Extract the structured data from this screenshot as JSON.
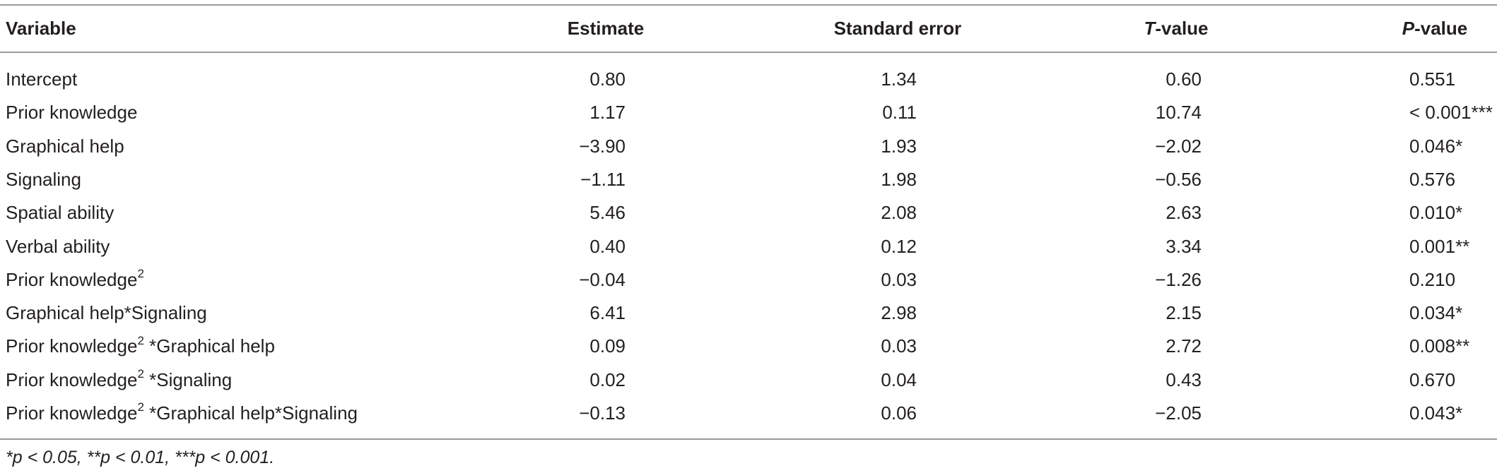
{
  "table": {
    "columns": [
      "Variable",
      "Estimate",
      "Standard error",
      {
        "italic": "T",
        "rest": "-value"
      },
      {
        "italic": "P",
        "rest": "-value"
      }
    ],
    "rows": [
      [
        "Intercept",
        "0.80",
        "1.34",
        "0.60",
        "0.551"
      ],
      [
        "Prior knowledge",
        "1.17",
        "0.11",
        "10.74",
        "< 0.001***"
      ],
      [
        "Graphical help",
        "−3.90",
        "1.93",
        "−2.02",
        "0.046*"
      ],
      [
        "Signaling",
        "−1.11",
        "1.98",
        "−0.56",
        "0.576"
      ],
      [
        "Spatial ability",
        "5.46",
        "2.08",
        "2.63",
        "0.010*"
      ],
      [
        "Verbal ability",
        "0.40",
        "0.12",
        "3.34",
        "0.001**"
      ],
      [
        {
          "main": "Prior knowledge",
          "sup": "2"
        },
        "−0.04",
        "0.03",
        "−1.26",
        "0.210"
      ],
      [
        "Graphical help*Signaling",
        "6.41",
        "2.98",
        "2.15",
        "0.034*"
      ],
      [
        {
          "main": "Prior knowledge",
          "sup": "2",
          "tail": " *Graphical help"
        },
        "0.09",
        "0.03",
        "2.72",
        "0.008**"
      ],
      [
        {
          "main": "Prior knowledge",
          "sup": "2",
          "tail": " *Signaling"
        },
        "0.02",
        "0.04",
        "0.43",
        "0.670"
      ],
      [
        {
          "main": "Prior knowledge",
          "sup": "2",
          "tail": " *Graphical help*Signaling"
        },
        "−0.13",
        "0.06",
        "−2.05",
        "0.043*"
      ]
    ],
    "footnote": "*p < 0.05, **p < 0.01, ***p < 0.001."
  }
}
